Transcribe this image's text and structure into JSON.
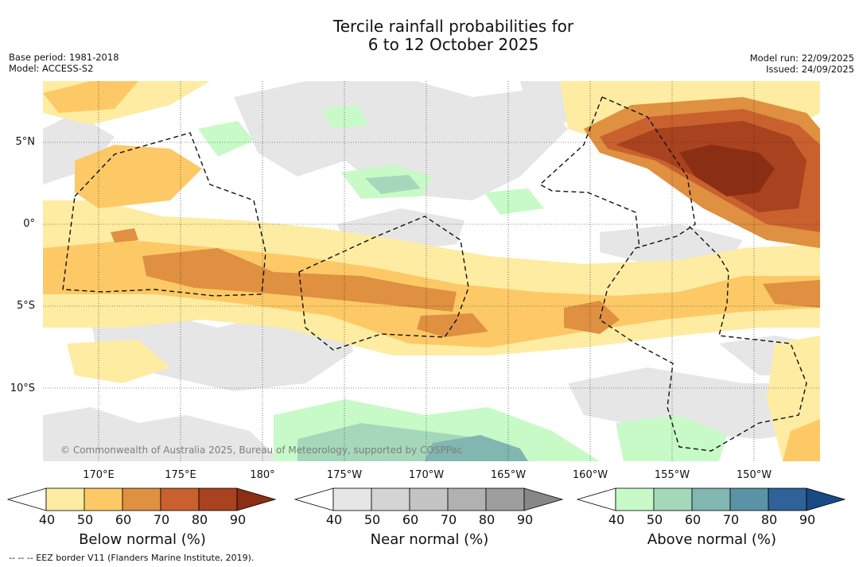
{
  "title": {
    "line1": "Tercile rainfall probabilities for",
    "line2": "6 to 12 October 2025"
  },
  "meta": {
    "base_period": "Base period: 1981-2018",
    "model": "Model: ACCESS-S2",
    "model_run": "Model run: 22/09/2025",
    "issued": "Issued: 24/09/2025"
  },
  "map": {
    "lat_labels": [
      "5°N",
      "0°",
      "5°S",
      "10°S"
    ],
    "lon_labels": [
      "170°E",
      "175°E",
      "180°",
      "175°W",
      "170°W",
      "165°W",
      "160°W",
      "155°W",
      "150°W"
    ],
    "copyright": "© Commonwealth of Australia 2025, Bureau of Meteorology, supported by COSPPac",
    "eez_legend": "--  --  -- EEZ border V11 (Flanders Marine Institute, 2019)."
  },
  "colorbars": [
    {
      "title": "Below normal (%)",
      "ticks": [
        "40",
        "50",
        "60",
        "70",
        "80",
        "90"
      ],
      "colors": [
        "#ffffff",
        "#feeca2",
        "#fdc966",
        "#df9040",
        "#c9612e",
        "#a9421e",
        "#8a2e14"
      ]
    },
    {
      "title": "Near normal (%)",
      "ticks": [
        "40",
        "50",
        "60",
        "70",
        "80",
        "90"
      ],
      "colors": [
        "#ffffff",
        "#e6e6e6",
        "#d4d4d4",
        "#c4c4c4",
        "#b1b1b1",
        "#9e9e9e",
        "#878787"
      ]
    },
    {
      "title": "Above normal (%)",
      "ticks": [
        "40",
        "50",
        "60",
        "70",
        "80",
        "90"
      ],
      "colors": [
        "#ffffff",
        "#c8fac8",
        "#a5d8bb",
        "#82b6b0",
        "#5a93a6",
        "#2e6298",
        "#184a85"
      ]
    }
  ],
  "colors": {
    "below": [
      "#feeca2",
      "#fdc966",
      "#df9040",
      "#c9612e",
      "#a9421e",
      "#8a2e14"
    ],
    "near": [
      "#e6e6e6",
      "#d4d4d4"
    ],
    "above": [
      "#c8fac8",
      "#a5d8bb",
      "#82b6b0"
    ]
  }
}
